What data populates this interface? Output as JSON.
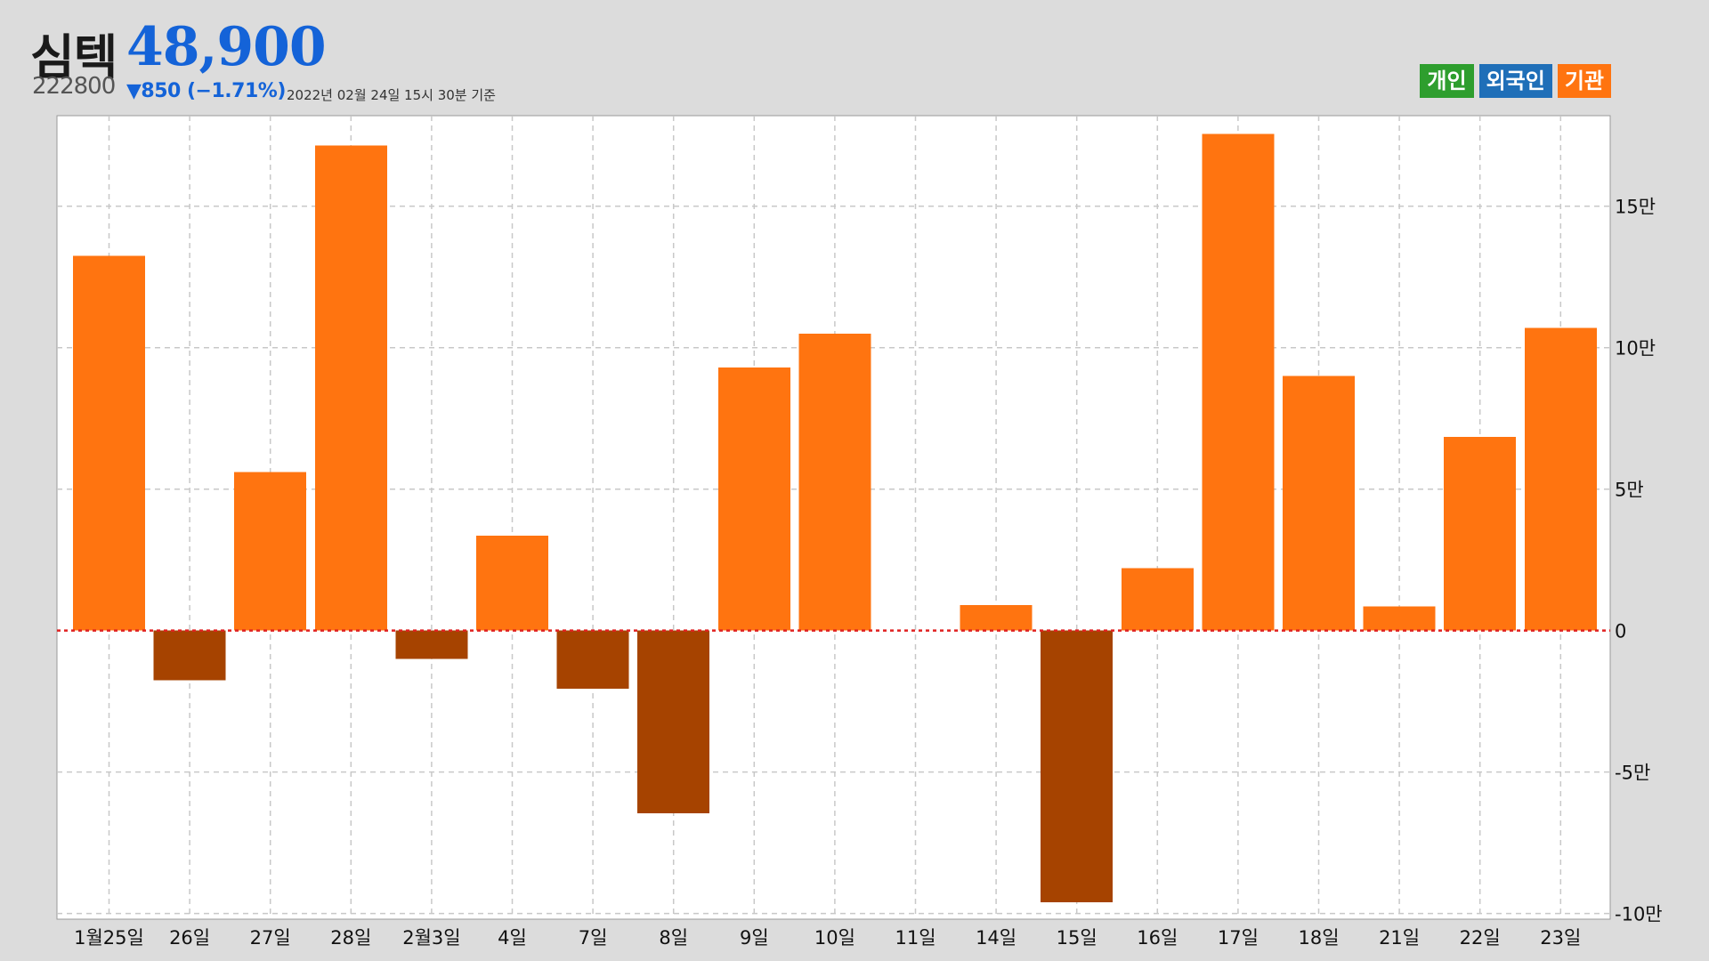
{
  "header": {
    "name": "심텍",
    "price": "48,900",
    "code": "222800",
    "change": "▼850 (−1.71%)",
    "timestamp": "2022년 02월 24일 15시 30분 기준"
  },
  "legend": [
    {
      "label": "개인",
      "color": "#2e9e2e"
    },
    {
      "label": "외국인",
      "color": "#1f6fb8"
    },
    {
      "label": "기관",
      "color": "#ff7410"
    }
  ],
  "colors": {
    "positive": "#ff7410",
    "negative": "#a64300",
    "zero_line": "#e02020",
    "grid": "#c8c8c8"
  },
  "chart_data": {
    "type": "bar",
    "categories": [
      "1월25일",
      "26일",
      "27일",
      "28일",
      "2월3일",
      "4일",
      "7일",
      "8일",
      "9일",
      "10일",
      "11일",
      "14일",
      "15일",
      "16일",
      "17일",
      "18일",
      "21일",
      "22일",
      "23일"
    ],
    "values": [
      132500,
      -17500,
      56000,
      171500,
      -10000,
      33500,
      -20500,
      -64500,
      93000,
      105000,
      0,
      9000,
      -96000,
      22000,
      175500,
      90000,
      8500,
      68500,
      107000
    ],
    "ylim": [
      -102000,
      182000
    ],
    "yticks": [
      -100000,
      -50000,
      0,
      50000,
      100000,
      150000
    ],
    "ytick_labels": [
      "-10만",
      "-5만",
      "0",
      "5만",
      "10만",
      "15만"
    ],
    "grid": true
  }
}
